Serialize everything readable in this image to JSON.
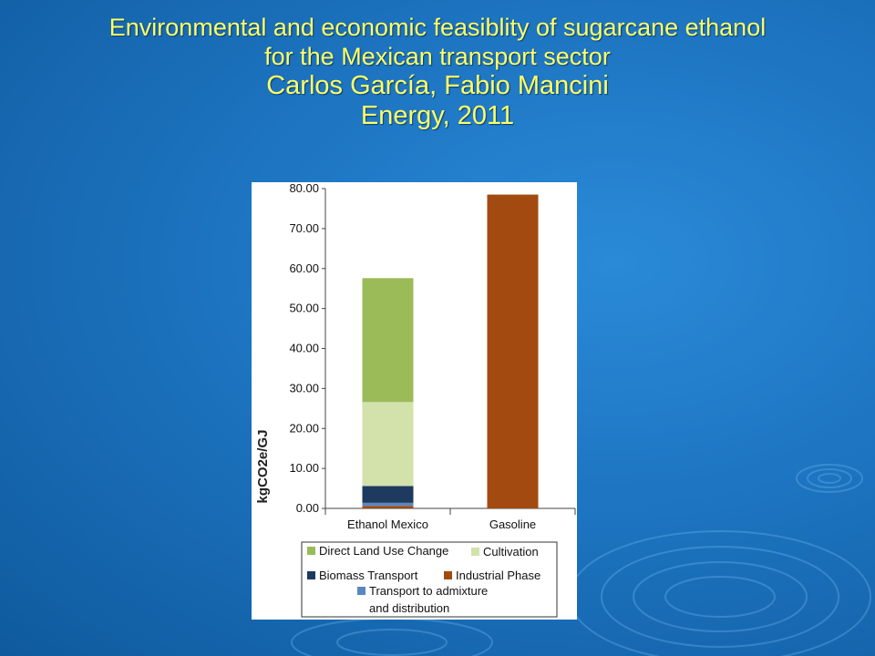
{
  "slide": {
    "title_line1": "Environmental and economic feasiblity of sugarcane ethanol",
    "title_line2": "for the Mexican transport sector",
    "authors": "Carlos García, Fabio Mancini",
    "journal": "Energy, 2011",
    "title_color": "#ffff66",
    "background_color": "#1d74c0"
  },
  "chart_data": {
    "type": "bar",
    "stacked": true,
    "ylabel": "kgCO2e/GJ",
    "ylim": [
      0,
      80
    ],
    "yticks": [
      "0.00",
      "10.00",
      "20.00",
      "30.00",
      "40.00",
      "50.00",
      "60.00",
      "70.00",
      "80.00"
    ],
    "grid": false,
    "legend_position": "bottom",
    "categories": [
      "Ethanol Mexico",
      "Gasoline"
    ],
    "series": [
      {
        "name": "Industrial Phase",
        "color": "#a24a0f",
        "values": [
          0.6,
          78.5
        ]
      },
      {
        "name": "Transport to admixture and distribution",
        "color": "#5b86c2",
        "values": [
          0.8,
          0
        ]
      },
      {
        "name": "Biomass Transport",
        "color": "#1f3a5f",
        "values": [
          4.2,
          0
        ]
      },
      {
        "name": "Cultivation",
        "color": "#d3e1ab",
        "values": [
          21.0,
          0
        ]
      },
      {
        "name": "Direct Land Use Change",
        "color": "#9bbb59",
        "values": [
          31.0,
          0
        ]
      }
    ],
    "legend": {
      "direct_land_use_change": "Direct Land Use Change",
      "cultivation": "Cultivation",
      "biomass_transport": "Biomass Transport",
      "industrial_phase": "Industrial Phase",
      "transport_admixture_line1": "Transport to admixture",
      "transport_admixture_line2": "and distribution"
    }
  }
}
